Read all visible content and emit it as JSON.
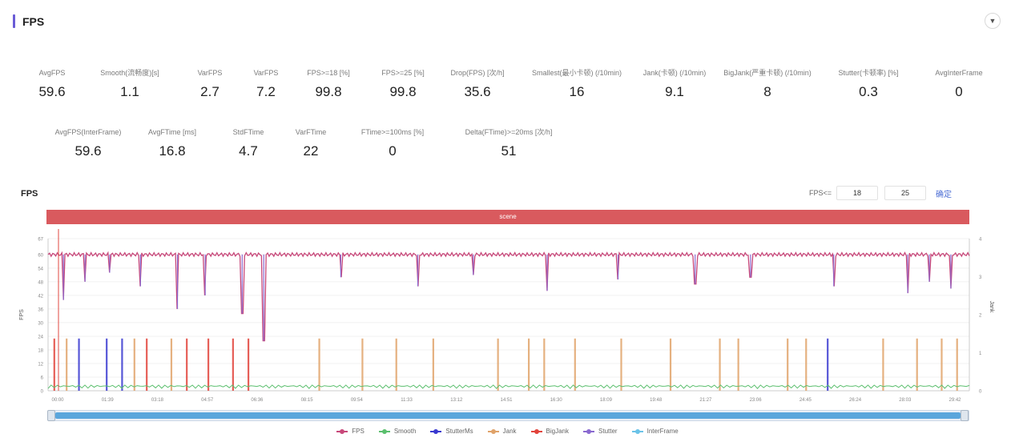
{
  "panel": {
    "title": "FPS",
    "collapse_icon": "chevron-down-icon"
  },
  "metrics_row1": [
    {
      "label": "AvgFPS",
      "value": "59.6",
      "help": false
    },
    {
      "label": "Smooth(流畅度)[s]",
      "value": "1.1",
      "help": false
    },
    {
      "label": "VarFPS",
      "value": "2.7",
      "help": false
    },
    {
      "label": "VarFPS",
      "value": "7.2",
      "help": false
    },
    {
      "label": "FPS>=18 [%]",
      "value": "99.8",
      "help": false
    },
    {
      "label": "FPS>=25 [%]",
      "value": "99.8",
      "help": false
    },
    {
      "label": "Drop(FPS) [次/h]",
      "value": "35.6",
      "help": false
    },
    {
      "label": "Smallest(最小卡顿) (/10min)",
      "value": "16",
      "help": true
    },
    {
      "label": "Jank(卡顿) (/10min)",
      "value": "9.1",
      "help": true
    },
    {
      "label": "BigJank(严重卡顿) (/10min)",
      "value": "8",
      "help": true
    },
    {
      "label": "Stutter(卡顿率) [%]",
      "value": "0.3",
      "help": false
    },
    {
      "label": "AvgInterFrame",
      "value": "0",
      "help": false
    }
  ],
  "metrics_row2": [
    {
      "label": "AvgFPS(InterFrame)",
      "value": "59.6"
    },
    {
      "label": "AvgFTime [ms]",
      "value": "16.8"
    },
    {
      "label": "StdFTime",
      "value": "4.7"
    },
    {
      "label": "VarFTime",
      "value": "22"
    },
    {
      "label": "FTime>=100ms [%]",
      "value": "0"
    },
    {
      "label": "Delta(FTime)>=20ms [次/h]",
      "value": "51"
    }
  ],
  "chart": {
    "title": "FPS",
    "filter_label": "FPS<=",
    "filter_values": [
      "18",
      "25"
    ],
    "confirm_label": "确定",
    "scene_label": "scene"
  },
  "colors": {
    "fps": "#c8487a",
    "smooth": "#5bbf6e",
    "stutter": "#3a3ad0",
    "jank": "#e0a36a",
    "bigjank": "#e2433b",
    "stutter2": "#8a6ad0",
    "interframe": "#6bc3e8",
    "scene": "#d95a5e",
    "accent": "#6a5cd6"
  },
  "chart_data": {
    "type": "line",
    "ylabel": "FPS",
    "y2label": "Jank",
    "ylim": [
      0,
      67
    ],
    "y_ticks": [
      0,
      6,
      12,
      18,
      24,
      30,
      36,
      42,
      48,
      54,
      60,
      67
    ],
    "y2lim": [
      0,
      4
    ],
    "y2_ticks": [
      0,
      1,
      2,
      3,
      4
    ],
    "x_ticks": [
      "00:00",
      "01:39",
      "03:18",
      "04:57",
      "06:36",
      "08:15",
      "09:54",
      "11:33",
      "13:12",
      "14:51",
      "16:30",
      "18:09",
      "19:48",
      "21:27",
      "23:06",
      "24:45",
      "26:24",
      "28:03",
      "29:42"
    ],
    "fps_baseline": 60,
    "fps_dips": [
      {
        "x": 0.5,
        "y": 40
      },
      {
        "x": 1.2,
        "y": 48
      },
      {
        "x": 2.0,
        "y": 52
      },
      {
        "x": 3.0,
        "y": 46
      },
      {
        "x": 4.2,
        "y": 36
      },
      {
        "x": 5.1,
        "y": 42
      },
      {
        "x": 6.3,
        "y": 34
      },
      {
        "x": 7.0,
        "y": 22
      },
      {
        "x": 9.5,
        "y": 50
      },
      {
        "x": 12.0,
        "y": 46
      },
      {
        "x": 13.8,
        "y": 51
      },
      {
        "x": 16.2,
        "y": 44
      },
      {
        "x": 18.5,
        "y": 49
      },
      {
        "x": 21.0,
        "y": 47
      },
      {
        "x": 22.8,
        "y": 50
      },
      {
        "x": 25.5,
        "y": 46
      },
      {
        "x": 27.9,
        "y": 43
      },
      {
        "x": 28.6,
        "y": 48
      },
      {
        "x": 29.3,
        "y": 45
      }
    ],
    "jank_spikes": [
      {
        "x": 0.2,
        "series": "BigJank"
      },
      {
        "x": 0.6,
        "series": "Jank"
      },
      {
        "x": 1.0,
        "series": "Stutter"
      },
      {
        "x": 1.9,
        "series": "Stutter"
      },
      {
        "x": 2.4,
        "series": "Stutter"
      },
      {
        "x": 2.8,
        "series": "Jank"
      },
      {
        "x": 3.2,
        "series": "BigJank"
      },
      {
        "x": 4.0,
        "series": "Jank"
      },
      {
        "x": 4.5,
        "series": "BigJank"
      },
      {
        "x": 5.2,
        "series": "BigJank"
      },
      {
        "x": 6.0,
        "series": "BigJank"
      },
      {
        "x": 6.5,
        "series": "BigJank"
      },
      {
        "x": 8.8,
        "series": "Jank"
      },
      {
        "x": 10.2,
        "series": "Jank"
      },
      {
        "x": 11.3,
        "series": "Jank"
      },
      {
        "x": 12.5,
        "series": "Jank"
      },
      {
        "x": 14.6,
        "series": "Jank"
      },
      {
        "x": 15.6,
        "series": "Jank"
      },
      {
        "x": 16.1,
        "series": "Jank"
      },
      {
        "x": 17.1,
        "series": "Jank"
      },
      {
        "x": 18.6,
        "series": "Jank"
      },
      {
        "x": 20.2,
        "series": "Jank"
      },
      {
        "x": 21.8,
        "series": "Jank"
      },
      {
        "x": 22.4,
        "series": "Jank"
      },
      {
        "x": 24.0,
        "series": "Jank"
      },
      {
        "x": 24.6,
        "series": "Jank"
      },
      {
        "x": 25.3,
        "series": "Stutter"
      },
      {
        "x": 27.1,
        "series": "Jank"
      },
      {
        "x": 28.2,
        "series": "Jank"
      },
      {
        "x": 29.0,
        "series": "Jank"
      },
      {
        "x": 29.5,
        "series": "Jank"
      }
    ],
    "legend": [
      "FPS",
      "Smooth",
      "StutterMs",
      "Jank",
      "BigJank",
      "Stutter",
      "InterFrame"
    ]
  }
}
